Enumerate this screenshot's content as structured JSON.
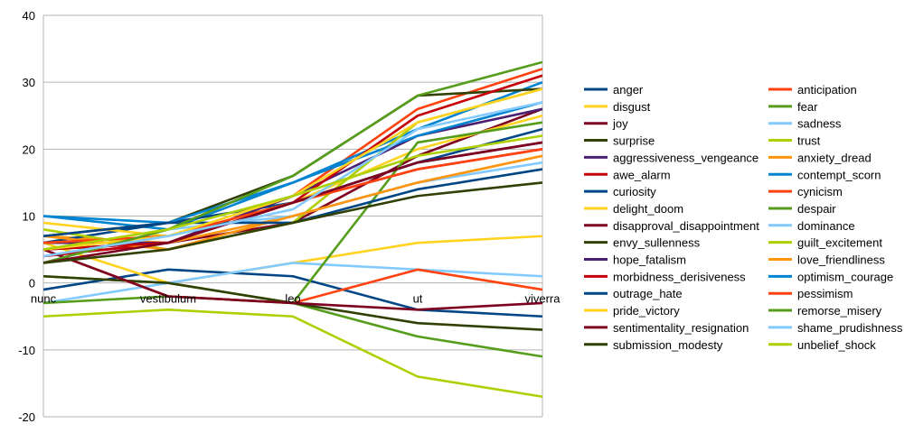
{
  "chart_data": {
    "type": "line",
    "title": "",
    "xlabel": "",
    "ylabel": "",
    "categories": [
      "nunc",
      "vestibulum",
      "leo",
      "ut",
      "viverra"
    ],
    "ylim": [
      -20,
      40
    ],
    "yticks": [
      -20,
      -10,
      0,
      10,
      20,
      30,
      40
    ],
    "grid": "horizontal",
    "legend_position": "right",
    "series": [
      {
        "name": "anger",
        "color": "#004586",
        "values": [
          -1,
          2,
          1,
          -4,
          -5
        ]
      },
      {
        "name": "anticipation",
        "color": "#ff420e",
        "values": [
          6,
          6,
          13,
          26,
          32
        ]
      },
      {
        "name": "disgust",
        "color": "#ffd320",
        "values": [
          6,
          0,
          3,
          6,
          7
        ]
      },
      {
        "name": "fear",
        "color": "#579d1c",
        "values": [
          1,
          0,
          -3,
          -8,
          -11
        ]
      },
      {
        "name": "joy",
        "color": "#7e0021",
        "values": [
          4,
          6,
          9,
          19,
          26
        ]
      },
      {
        "name": "sadness",
        "color": "#83caff",
        "values": [
          -3,
          0,
          3,
          2,
          1
        ]
      },
      {
        "name": "surprise",
        "color": "#314004",
        "values": [
          1,
          0,
          -3,
          -6,
          -7
        ]
      },
      {
        "name": "trust",
        "color": "#aecf00",
        "values": [
          -5,
          -4,
          -5,
          -14,
          -17
        ]
      },
      {
        "name": "aggressiveness_vengeance",
        "color": "#4b1f6f",
        "values": [
          5,
          6,
          12,
          18,
          21
        ]
      },
      {
        "name": "anxiety_dread",
        "color": "#ff950e",
        "values": [
          7,
          6,
          10,
          15,
          19
        ]
      },
      {
        "name": "awe_alarm",
        "color": "#c5000b",
        "values": [
          4,
          6,
          12,
          17,
          20
        ]
      },
      {
        "name": "contempt_scorn",
        "color": "#0084d1",
        "values": [
          10,
          8,
          15,
          23,
          30
        ]
      },
      {
        "name": "curiosity",
        "color": "#004586",
        "values": [
          6,
          9,
          12,
          18,
          23
        ]
      },
      {
        "name": "cynicism",
        "color": "#ff420e",
        "values": [
          5,
          -2,
          -3,
          2,
          -1
        ]
      },
      {
        "name": "delight_doom",
        "color": "#ffd320",
        "values": [
          9,
          7,
          12,
          20,
          25
        ]
      },
      {
        "name": "despair",
        "color": "#579d1c",
        "values": [
          -3,
          -2,
          -3,
          21,
          24
        ]
      },
      {
        "name": "disapproval_disappointment",
        "color": "#7e0021",
        "values": [
          5,
          -2,
          -3,
          -4,
          -3
        ]
      },
      {
        "name": "dominance",
        "color": "#83caff",
        "values": [
          3,
          8,
          10,
          15,
          18
        ]
      },
      {
        "name": "envy_sullenness",
        "color": "#314004",
        "values": [
          7,
          9,
          16,
          28,
          29
        ]
      },
      {
        "name": "guilt_excitement",
        "color": "#aecf00",
        "values": [
          8,
          5,
          9,
          24,
          29
        ]
      },
      {
        "name": "hope_fatalism",
        "color": "#4b1f6f",
        "values": [
          6,
          6,
          13,
          22,
          26
        ]
      },
      {
        "name": "love_friendliness",
        "color": "#ff950e",
        "values": [
          7,
          5,
          10,
          15,
          19
        ]
      },
      {
        "name": "morbidness_derisiveness",
        "color": "#c5000b",
        "values": [
          5,
          6,
          12,
          25,
          31
        ]
      },
      {
        "name": "optimism_courage",
        "color": "#0084d1",
        "values": [
          10,
          9,
          15,
          22,
          27
        ]
      },
      {
        "name": "outrage_hate",
        "color": "#004586",
        "values": [
          7,
          9,
          9,
          14,
          17
        ]
      },
      {
        "name": "pessimism",
        "color": "#ff420e",
        "values": [
          6,
          7,
          12,
          17,
          20
        ]
      },
      {
        "name": "pride_victory",
        "color": "#ffd320",
        "values": [
          5,
          7,
          13,
          24,
          29
        ]
      },
      {
        "name": "remorse_misery",
        "color": "#579d1c",
        "values": [
          3,
          8,
          16,
          28,
          33
        ]
      },
      {
        "name": "sentimentality_resignation",
        "color": "#7e0021",
        "values": [
          3,
          6,
          12,
          18,
          21
        ]
      },
      {
        "name": "shame_prudishness",
        "color": "#83caff",
        "values": [
          4,
          7,
          11,
          23,
          27
        ]
      },
      {
        "name": "submission_modesty",
        "color": "#314004",
        "values": [
          3,
          5,
          9,
          13,
          15
        ]
      },
      {
        "name": "unbelief_shock",
        "color": "#aecf00",
        "values": [
          5,
          8,
          13,
          19,
          22
        ]
      }
    ]
  }
}
